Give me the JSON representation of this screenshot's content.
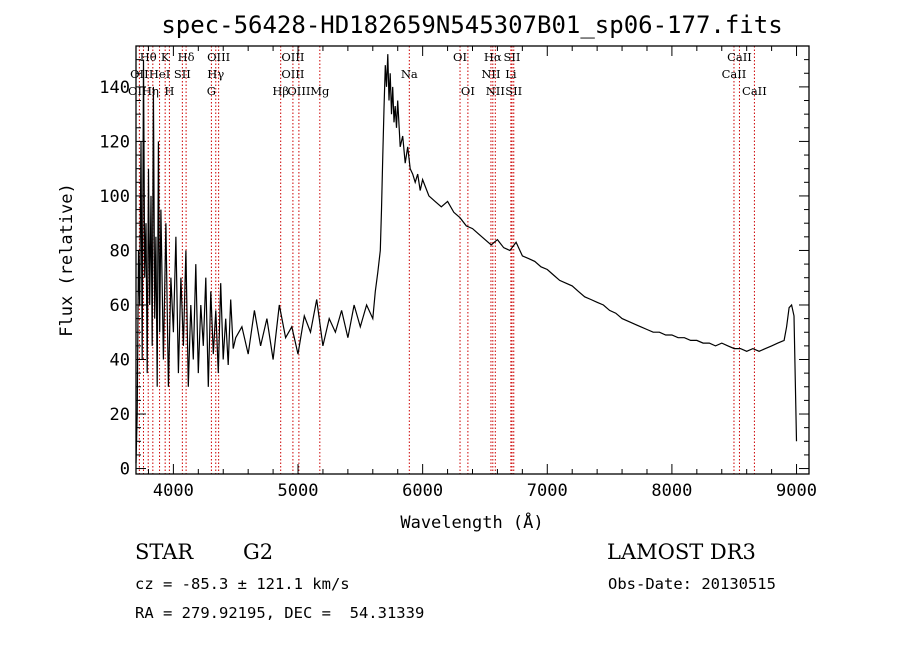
{
  "chart_data": {
    "type": "line",
    "title": "spec-56428-HD182659N545307B01_sp06-177.fits",
    "xlabel": "Wavelength (Å)",
    "ylabel": "Flux (relative)",
    "xlim": [
      3700,
      9100
    ],
    "ylim": [
      -2,
      155
    ],
    "xticks": [
      4000,
      5000,
      6000,
      7000,
      8000,
      9000
    ],
    "yticks": [
      0,
      20,
      40,
      60,
      80,
      100,
      120,
      140
    ],
    "grid": false,
    "series": [
      {
        "x": [
          3700,
          3710,
          3720,
          3730,
          3740,
          3750,
          3760,
          3770,
          3780,
          3790,
          3800,
          3810,
          3820,
          3830,
          3840,
          3850,
          3860,
          3870,
          3880,
          3890,
          3900,
          3920,
          3940,
          3960,
          3980,
          4000,
          4020,
          4040,
          4060,
          4080,
          4100,
          4120,
          4140,
          4160,
          4180,
          4200,
          4220,
          4240,
          4260,
          4280,
          4300,
          4320,
          4340,
          4360,
          4380,
          4400,
          4420,
          4440,
          4460,
          4480,
          4500,
          4550,
          4600,
          4650,
          4700,
          4750,
          4800,
          4850,
          4900,
          4950,
          5000,
          5050,
          5100,
          5150,
          5200,
          5250,
          5300,
          5350,
          5400,
          5450,
          5500,
          5550,
          5600,
          5620,
          5640,
          5660,
          5670,
          5680,
          5690,
          5700,
          5710,
          5720,
          5730,
          5740,
          5750,
          5760,
          5770,
          5780,
          5790,
          5800,
          5820,
          5840,
          5860,
          5880,
          5900,
          5920,
          5940,
          5960,
          5980,
          6000,
          6050,
          6100,
          6150,
          6200,
          6250,
          6300,
          6350,
          6400,
          6450,
          6500,
          6550,
          6600,
          6650,
          6700,
          6750,
          6800,
          6850,
          6900,
          6950,
          7000,
          7050,
          7100,
          7150,
          7200,
          7250,
          7300,
          7350,
          7400,
          7450,
          7500,
          7550,
          7600,
          7650,
          7700,
          7750,
          7800,
          7850,
          7900,
          7950,
          8000,
          8050,
          8100,
          8150,
          8200,
          8250,
          8300,
          8350,
          8400,
          8450,
          8500,
          8550,
          8600,
          8650,
          8700,
          8750,
          8800,
          8850,
          8900,
          8920,
          8940,
          8960,
          8980,
          9000
        ],
        "values": [
          2,
          20,
          80,
          60,
          120,
          40,
          150,
          70,
          90,
          35,
          110,
          60,
          100,
          45,
          140,
          55,
          85,
          30,
          120,
          50,
          95,
          40,
          90,
          30,
          70,
          50,
          85,
          35,
          70,
          45,
          80,
          30,
          60,
          40,
          75,
          35,
          60,
          45,
          70,
          30,
          65,
          42,
          58,
          35,
          68,
          40,
          55,
          38,
          62,
          44,
          48,
          52,
          42,
          58,
          45,
          55,
          40,
          60,
          48,
          52,
          42,
          56,
          50,
          62,
          45,
          55,
          50,
          58,
          48,
          60,
          52,
          60,
          55,
          65,
          72,
          80,
          95,
          115,
          132,
          148,
          140,
          152,
          135,
          145,
          130,
          140,
          127,
          133,
          125,
          135,
          118,
          122,
          112,
          118,
          110,
          108,
          105,
          108,
          102,
          106,
          100,
          98,
          96,
          98,
          94,
          92,
          89,
          88,
          86,
          84,
          82,
          84,
          81,
          80,
          83,
          78,
          77,
          76,
          74,
          73,
          71,
          69,
          68,
          67,
          65,
          63,
          62,
          61,
          60,
          58,
          57,
          55,
          54,
          53,
          52,
          51,
          50,
          50,
          49,
          49,
          48,
          48,
          47,
          47,
          46,
          46,
          45,
          46,
          45,
          44,
          44,
          43,
          44,
          43,
          44,
          45,
          46,
          47,
          52,
          59,
          60,
          56,
          10
        ]
      }
    ],
    "line_labels": [
      {
        "text": "Hθ",
        "wl": 3798,
        "row": 1
      },
      {
        "text": "K",
        "wl": 3934,
        "row": 1
      },
      {
        "text": "Hδ",
        "wl": 4102,
        "row": 1
      },
      {
        "text": "OIII",
        "wl": 4363,
        "row": 1
      },
      {
        "text": "OIII",
        "wl": 4959,
        "row": 1
      },
      {
        "text": "OI",
        "wl": 6300,
        "row": 1
      },
      {
        "text": "Hα",
        "wl": 6563,
        "row": 1
      },
      {
        "text": "SII",
        "wl": 6717,
        "row": 1
      },
      {
        "text": "CaII",
        "wl": 8542,
        "row": 1
      },
      {
        "text": "OII",
        "wl": 3727,
        "row": 2
      },
      {
        "text": "HeI",
        "wl": 3889,
        "row": 2
      },
      {
        "text": "SII",
        "wl": 4072,
        "row": 2
      },
      {
        "text": "Hγ",
        "wl": 4340,
        "row": 2
      },
      {
        "text": "OIII",
        "wl": 4959,
        "row": 2
      },
      {
        "text": "Na",
        "wl": 5893,
        "row": 2
      },
      {
        "text": "NII",
        "wl": 6548,
        "row": 2
      },
      {
        "text": "Li",
        "wl": 6708,
        "row": 2
      },
      {
        "text": "CaII",
        "wl": 8498,
        "row": 2
      },
      {
        "text": "OIHη",
        "wl": 3760,
        "row": 3
      },
      {
        "text": "H",
        "wl": 3968,
        "row": 3
      },
      {
        "text": "G",
        "wl": 4305,
        "row": 3
      },
      {
        "text": "Hβ",
        "wl": 4861,
        "row": 3
      },
      {
        "text": "OIII",
        "wl": 5007,
        "row": 3
      },
      {
        "text": "Mg",
        "wl": 5175,
        "row": 3
      },
      {
        "text": "OI",
        "wl": 6363,
        "row": 3
      },
      {
        "text": "NII",
        "wl": 6583,
        "row": 3
      },
      {
        "text": "SII",
        "wl": 6731,
        "row": 3
      },
      {
        "text": "CaII",
        "wl": 8662,
        "row": 3
      }
    ],
    "line_marker_wavelengths": [
      3727,
      3760,
      3798,
      3835,
      3889,
      3934,
      3968,
      4072,
      4102,
      4305,
      4340,
      4363,
      4861,
      4959,
      5007,
      5175,
      5893,
      6300,
      6363,
      6548,
      6563,
      6583,
      6708,
      6717,
      6731,
      8498,
      8542,
      8662
    ],
    "colors": {
      "spectrum": "#000000",
      "markers": "#cc0000"
    }
  },
  "footer": {
    "object_type": "STAR",
    "subclass": "G2",
    "survey": "LAMOST DR3",
    "cz": "cz = -85.3 ± 121.1 km/s",
    "obs_date": "Obs-Date: 20130515",
    "coords": "RA = 279.92195, DEC =  54.31339"
  }
}
